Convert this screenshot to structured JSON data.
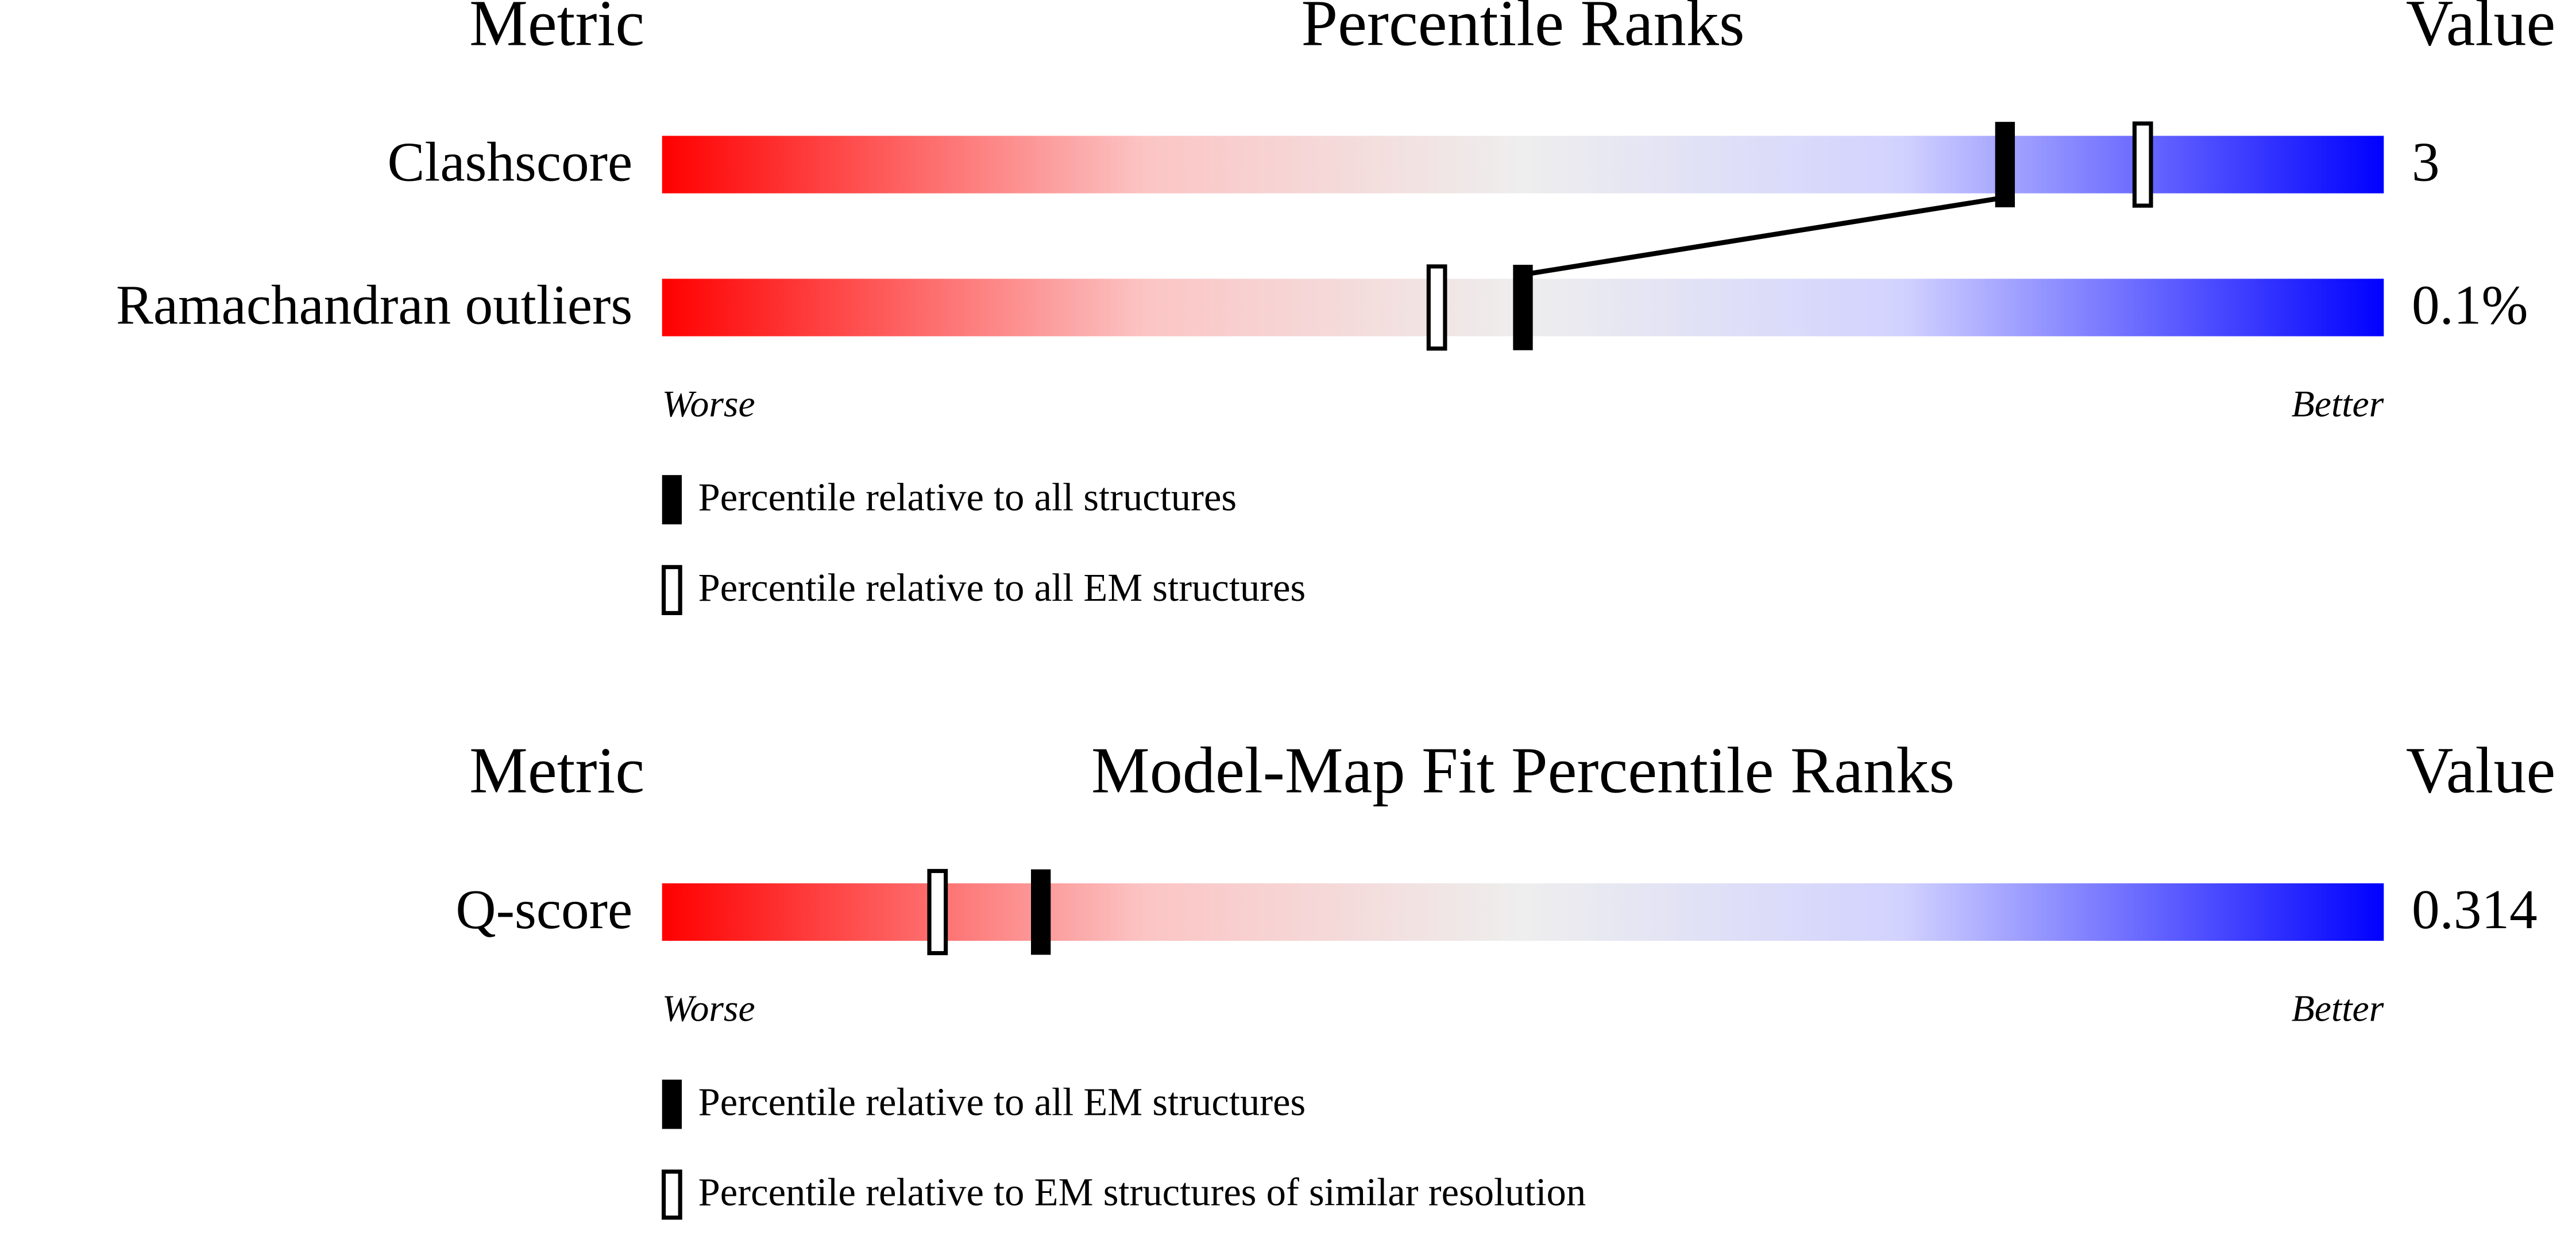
{
  "chart_data": [
    {
      "type": "slider",
      "metric_header": "Metric",
      "title": "Percentile Ranks",
      "value_header": "Value",
      "categories": [
        "Clashscore",
        "Ramachandran outliers"
      ],
      "value_texts": [
        "3",
        "0.1%"
      ],
      "series": [
        {
          "name": "Percentile relative to all structures",
          "marker": "filled",
          "values": [
            78,
            50
          ]
        },
        {
          "name": "Percentile relative to all EM structures",
          "marker": "open",
          "values": [
            86,
            45
          ]
        }
      ],
      "xlim": [
        0,
        100
      ],
      "worse_label": "Worse",
      "better_label": "Better"
    },
    {
      "type": "slider",
      "metric_header": "Metric",
      "title": "Model-Map Fit Percentile Ranks",
      "value_header": "Value",
      "categories": [
        "Q-score"
      ],
      "value_texts": [
        "0.314"
      ],
      "series": [
        {
          "name": "Percentile relative to all EM structures",
          "marker": "filled",
          "values": [
            22
          ]
        },
        {
          "name": "Percentile relative to EM structures of similar resolution",
          "marker": "open",
          "values": [
            16
          ]
        }
      ],
      "xlim": [
        0,
        100
      ],
      "worse_label": "Worse",
      "better_label": "Better"
    }
  ]
}
